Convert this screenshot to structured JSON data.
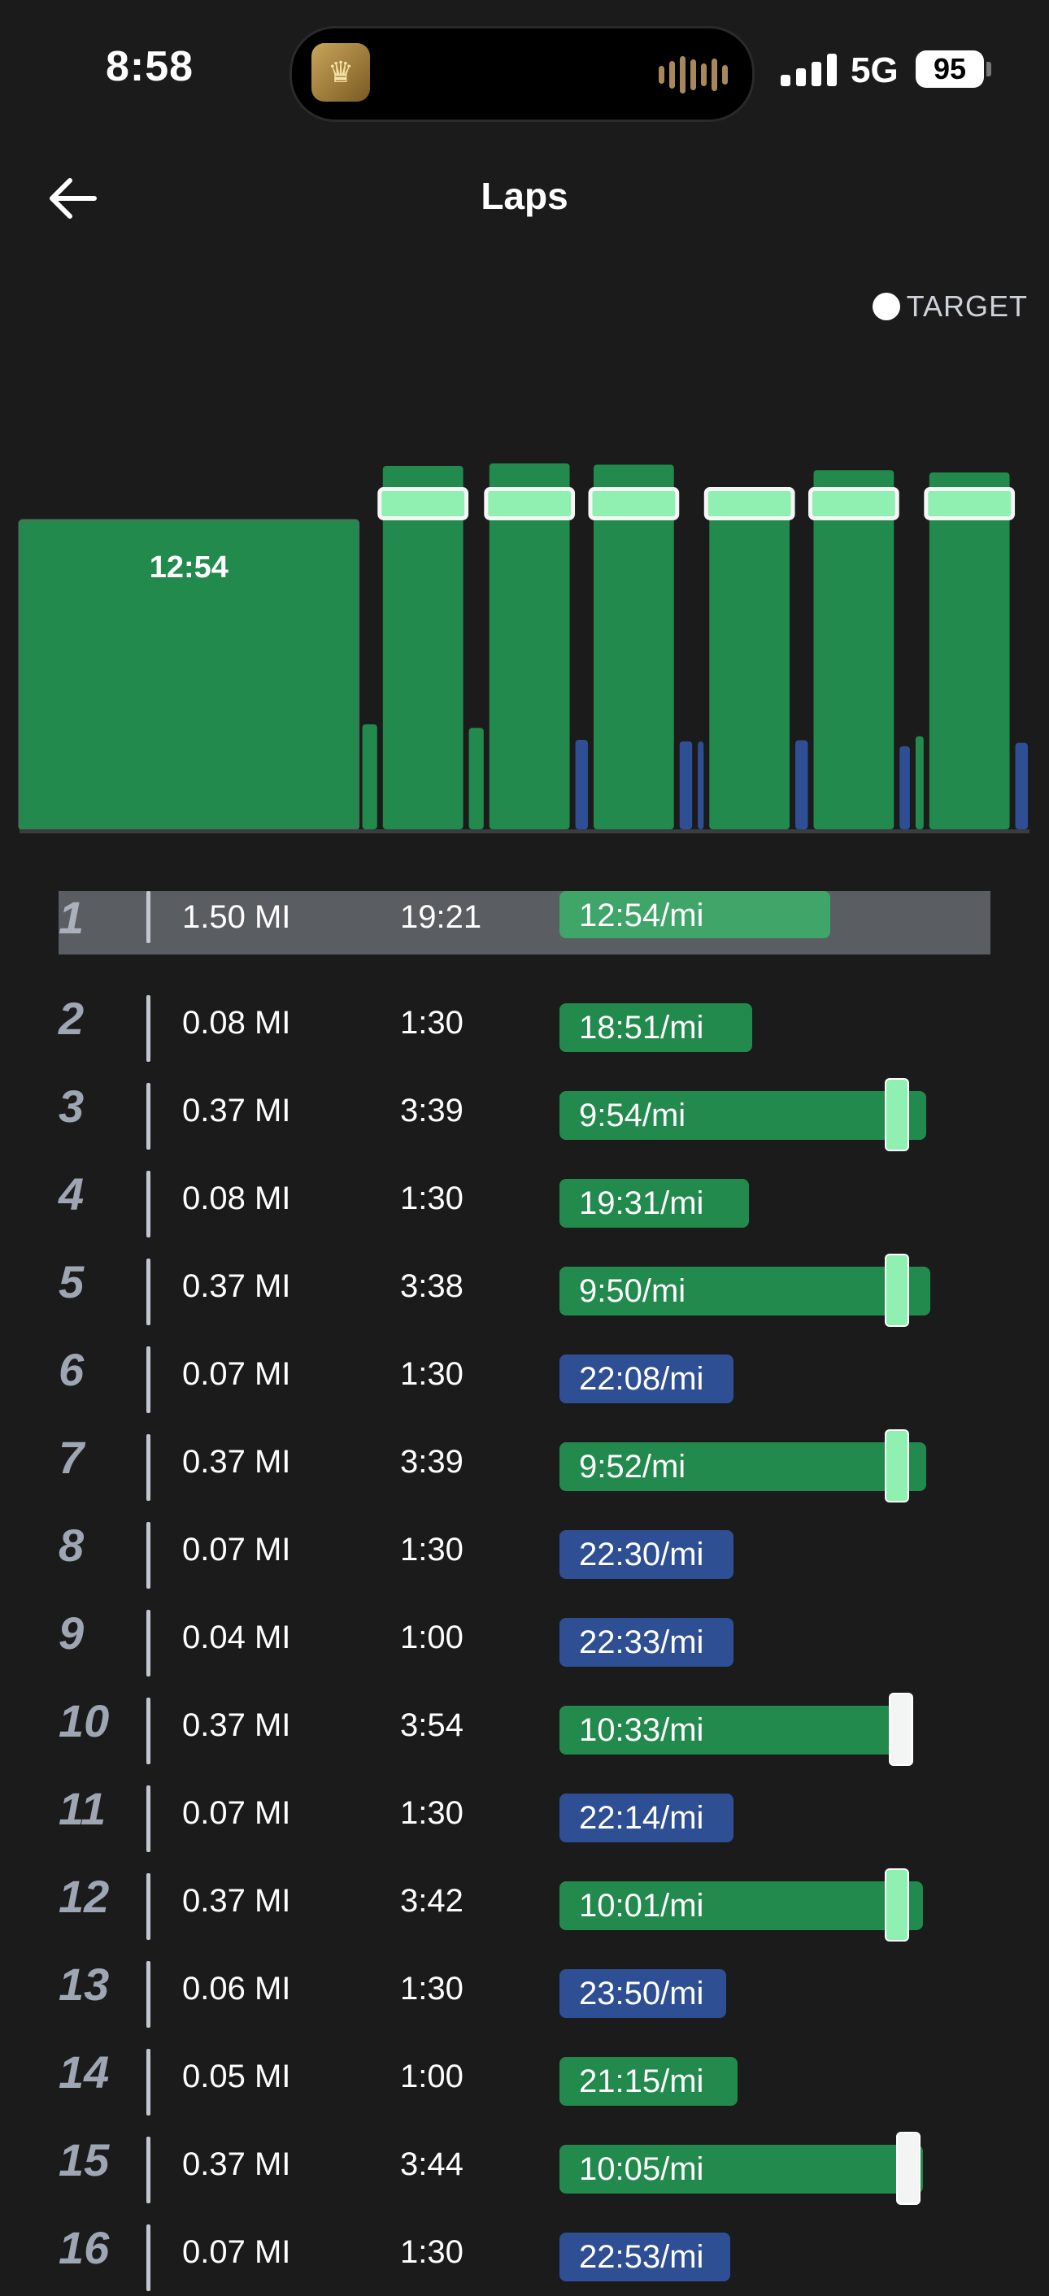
{
  "status_bar": {
    "time": "8:58",
    "network": "5G",
    "battery": "95"
  },
  "header": {
    "title": "Laps"
  },
  "legend": {
    "target_label": "TARGET"
  },
  "colors": {
    "green": "#228a4c",
    "blue": "#2f4f94",
    "target": "#8ff0b2",
    "selected": "#3fa569"
  },
  "chart_data": {
    "type": "bar",
    "bar_value_label": "12:54",
    "laps": [
      {
        "lap": 1,
        "kind": "work",
        "distance_mi": 1.5,
        "pace": "12:54/mi"
      },
      {
        "lap": 2,
        "kind": "recovery",
        "distance_mi": 0.08,
        "pace": "18:51/mi"
      },
      {
        "lap": 3,
        "kind": "work",
        "distance_mi": 0.37,
        "pace": "9:54/mi"
      },
      {
        "lap": 4,
        "kind": "recovery",
        "distance_mi": 0.08,
        "pace": "19:31/mi"
      },
      {
        "lap": 5,
        "kind": "work",
        "distance_mi": 0.37,
        "pace": "9:50/mi"
      },
      {
        "lap": 6,
        "kind": "recovery",
        "distance_mi": 0.07,
        "pace": "22:08/mi"
      },
      {
        "lap": 7,
        "kind": "work",
        "distance_mi": 0.37,
        "pace": "9:52/mi"
      },
      {
        "lap": 8,
        "kind": "recovery",
        "distance_mi": 0.07,
        "pace": "22:30/mi"
      },
      {
        "lap": 9,
        "kind": "recovery",
        "distance_mi": 0.04,
        "pace": "22:33/mi"
      },
      {
        "lap": 10,
        "kind": "work",
        "distance_mi": 0.37,
        "pace": "10:33/mi"
      },
      {
        "lap": 11,
        "kind": "recovery",
        "distance_mi": 0.07,
        "pace": "22:14/mi"
      },
      {
        "lap": 12,
        "kind": "work",
        "distance_mi": 0.37,
        "pace": "10:01/mi"
      },
      {
        "lap": 13,
        "kind": "recovery",
        "distance_mi": 0.06,
        "pace": "23:50/mi"
      },
      {
        "lap": 14,
        "kind": "recovery",
        "distance_mi": 0.05,
        "pace": "21:15/mi"
      },
      {
        "lap": 15,
        "kind": "work",
        "distance_mi": 0.37,
        "pace": "10:05/mi"
      },
      {
        "lap": 16,
        "kind": "recovery",
        "distance_mi": 0.07,
        "pace": "22:53/mi"
      }
    ]
  },
  "laps": [
    {
      "num": "1",
      "distance": "1.50 MI",
      "duration": "19:21",
      "pace": "12:54/mi",
      "color": "#3fa569",
      "bar_fraction": 0.73,
      "target": null
    },
    {
      "num": "2",
      "distance": "0.08 MI",
      "duration": "1:30",
      "pace": "18:51/mi",
      "color": "#228a4c",
      "bar_fraction": 0.52,
      "target": null
    },
    {
      "num": "3",
      "distance": "0.37 MI",
      "duration": "3:39",
      "pace": "9:54/mi",
      "color": "#228a4c",
      "bar_fraction": 0.99,
      "target": 0.91
    },
    {
      "num": "4",
      "distance": "0.08 MI",
      "duration": "1:30",
      "pace": "19:31/mi",
      "color": "#228a4c",
      "bar_fraction": 0.51,
      "target": null
    },
    {
      "num": "5",
      "distance": "0.37 MI",
      "duration": "3:38",
      "pace": "9:50/mi",
      "color": "#228a4c",
      "bar_fraction": 1.0,
      "target": 0.91
    },
    {
      "num": "6",
      "distance": "0.07 MI",
      "duration": "1:30",
      "pace": "22:08/mi",
      "color": "#2f4f94",
      "bar_fraction": 0.47,
      "target": null
    },
    {
      "num": "7",
      "distance": "0.37 MI",
      "duration": "3:39",
      "pace": "9:52/mi",
      "color": "#228a4c",
      "bar_fraction": 0.99,
      "target": 0.91
    },
    {
      "num": "8",
      "distance": "0.07 MI",
      "duration": "1:30",
      "pace": "22:30/mi",
      "color": "#2f4f94",
      "bar_fraction": 0.47,
      "target": null
    },
    {
      "num": "9",
      "distance": "0.04 MI",
      "duration": "1:00",
      "pace": "22:33/mi",
      "color": "#2f4f94",
      "bar_fraction": 0.47,
      "target": null
    },
    {
      "num": "10",
      "distance": "0.37 MI",
      "duration": "3:54",
      "pace": "10:33/mi",
      "color": "#228a4c",
      "bar_fraction": 0.92,
      "target": 0.92,
      "target_style": "white"
    },
    {
      "num": "11",
      "distance": "0.07 MI",
      "duration": "1:30",
      "pace": "22:14/mi",
      "color": "#2f4f94",
      "bar_fraction": 0.47,
      "target": null
    },
    {
      "num": "12",
      "distance": "0.37 MI",
      "duration": "3:42",
      "pace": "10:01/mi",
      "color": "#228a4c",
      "bar_fraction": 0.98,
      "target": 0.91
    },
    {
      "num": "13",
      "distance": "0.06 MI",
      "duration": "1:30",
      "pace": "23:50/mi",
      "color": "#2f4f94",
      "bar_fraction": 0.45,
      "target": null
    },
    {
      "num": "14",
      "distance": "0.05 MI",
      "duration": "1:00",
      "pace": "21:15/mi",
      "color": "#228a4c",
      "bar_fraction": 0.48,
      "target": null
    },
    {
      "num": "15",
      "distance": "0.37 MI",
      "duration": "3:44",
      "pace": "10:05/mi",
      "color": "#228a4c",
      "bar_fraction": 0.98,
      "target": 0.94,
      "target_style": "white"
    },
    {
      "num": "16",
      "distance": "0.07 MI",
      "duration": "1:30",
      "pace": "22:53/mi",
      "color": "#2f4f94",
      "bar_fraction": 0.46,
      "target": null
    }
  ]
}
